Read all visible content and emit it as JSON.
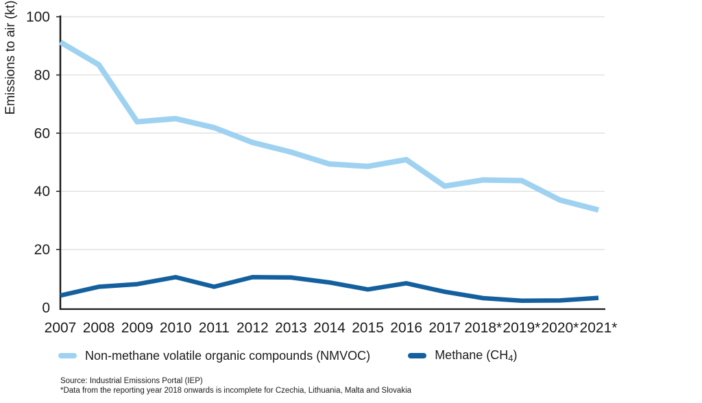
{
  "chart_data": {
    "type": "line",
    "title": "",
    "xlabel": "",
    "ylabel": "Emissions to air (kt)",
    "ylim": [
      0,
      100
    ],
    "yticks": [
      0,
      20,
      40,
      60,
      80,
      100
    ],
    "grid": "horizontal",
    "legend_position": "bottom",
    "categories": [
      "2007",
      "2008",
      "2009",
      "2010",
      "2011",
      "2012",
      "2013",
      "2014",
      "2015",
      "2016",
      "2017",
      "2018*",
      "2019*",
      "2020*",
      "2021*"
    ],
    "series": [
      {
        "name": "Non-methane volatile organic compounds (NMVOC)",
        "color": "#9FD2F1",
        "stroke_width": 8,
        "values": [
          91.3,
          83.5,
          63.9,
          65.0,
          61.9,
          56.8,
          53.5,
          49.4,
          48.6,
          50.9,
          41.8,
          43.9,
          43.7,
          37.0,
          33.6
        ]
      },
      {
        "name": "Methane (CH4)",
        "color": "#14609E",
        "stroke_width": 6.5,
        "values": [
          4.2,
          7.2,
          8.1,
          10.5,
          7.2,
          10.5,
          10.4,
          8.7,
          6.3,
          8.4,
          5.5,
          3.3,
          2.4,
          2.5,
          3.4
        ]
      }
    ]
  },
  "axis": {
    "y_title": "Emissions to air (kt)"
  },
  "legend": {
    "items": [
      {
        "label": "Non-methane volatile organic compounds (NMVOC)",
        "color": "#9FD2F1"
      },
      {
        "label_pre": "Methane (CH",
        "label_sub": "4",
        "label_post": ")",
        "color": "#14609E"
      }
    ]
  },
  "footer": {
    "source": "Source: Industrial Emissions Portal (IEP)",
    "note": "*Data from the reporting year 2018 onwards is incomplete for Czechia, Lithuania, Malta and Slovakia"
  },
  "colors": {
    "text": "#1a1a1a",
    "gridline": "#e2e2e2",
    "axis": "#1a1a1a"
  }
}
